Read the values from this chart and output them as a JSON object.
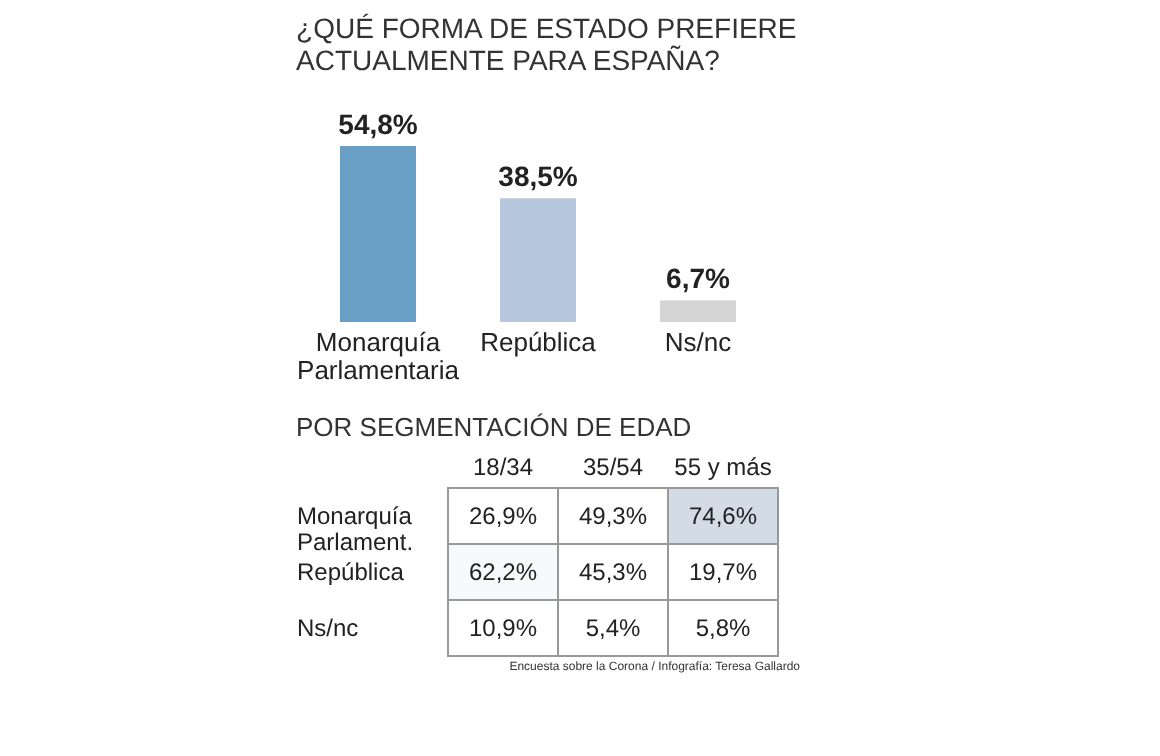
{
  "chart_data": [
    {
      "type": "bar",
      "title": "¿QUÉ FORMA DE ESTADO PREFIERE ACTUALMENTE PARA ESPAÑA?",
      "categories": [
        "Monarquía Parlamentaria",
        "República",
        "Ns/nc"
      ],
      "values": [
        54.8,
        38.5,
        6.7
      ],
      "colors": [
        "#6a9fc5",
        "#b6c7dd",
        "#d4d4d4"
      ],
      "value_labels": [
        "54,8%",
        "38,5%",
        "6,7%"
      ]
    },
    {
      "type": "heatmap",
      "title": "POR SEGMENTACIÓN DE EDAD",
      "categories": [
        "18/34",
        "35/54",
        "55 y más"
      ],
      "y_categories": [
        "Monarquía Parlament.",
        "República",
        "Ns/nc"
      ],
      "cells": [
        [
          26.9,
          49.3,
          74.6
        ],
        [
          62.2,
          45.3,
          19.7
        ],
        [
          10.9,
          5.4,
          5.8
        ]
      ],
      "cell_labels": [
        [
          "26,9%",
          "49,3%",
          "74,6%"
        ],
        [
          "62,2%",
          "45,3%",
          "19,7%"
        ],
        [
          "10,9%",
          "5,4%",
          "5,8%"
        ]
      ],
      "annotations": [
        "Encuesta sobre la Corona / Infografía: Teresa Gallardo"
      ]
    }
  ]
}
